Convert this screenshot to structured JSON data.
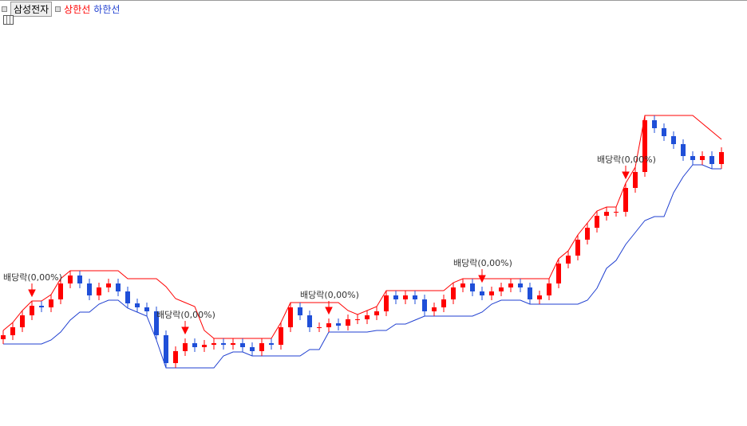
{
  "chart_data": {
    "type": "candlestick",
    "title": "삼성전자",
    "ylim": [
      0,
      495
    ],
    "up_color": "#ff0000",
    "down_color": "#1f4fd8",
    "open": [
      110,
      115,
      125,
      140,
      152,
      150,
      160,
      180,
      190,
      180,
      165,
      175,
      180,
      170,
      155,
      150,
      145,
      115,
      80,
      95,
      105,
      100,
      103,
      105,
      103,
      105,
      100,
      95,
      105,
      103,
      125,
      150,
      140,
      125,
      125,
      130,
      127,
      135,
      135,
      140,
      145,
      165,
      160,
      165,
      160,
      145,
      150,
      160,
      175,
      180,
      170,
      165,
      170,
      175,
      180,
      175,
      160,
      165,
      180,
      205,
      215,
      235,
      250,
      265,
      270,
      270,
      300,
      320,
      385,
      375,
      365,
      355,
      340,
      335,
      340,
      330
    ],
    "high": [
      121,
      131,
      146,
      158,
      158,
      166,
      186,
      196,
      196,
      186,
      181,
      186,
      186,
      176,
      161,
      156,
      151,
      121,
      101,
      111,
      111,
      109,
      111,
      111,
      111,
      111,
      106,
      111,
      111,
      131,
      156,
      156,
      146,
      131,
      136,
      136,
      141,
      141,
      146,
      151,
      171,
      171,
      171,
      171,
      166,
      156,
      166,
      181,
      186,
      186,
      176,
      176,
      181,
      186,
      186,
      181,
      171,
      186,
      211,
      221,
      241,
      256,
      271,
      276,
      276,
      306,
      326,
      391,
      391,
      381,
      371,
      361,
      346,
      346,
      346,
      351
    ],
    "low": [
      104,
      109,
      119,
      134,
      144,
      144,
      154,
      174,
      174,
      159,
      159,
      169,
      164,
      149,
      144,
      139,
      109,
      74,
      74,
      89,
      94,
      94,
      97,
      97,
      97,
      94,
      89,
      89,
      97,
      97,
      119,
      134,
      119,
      119,
      119,
      121,
      121,
      129,
      129,
      134,
      139,
      154,
      154,
      154,
      139,
      139,
      144,
      154,
      169,
      164,
      159,
      159,
      164,
      169,
      169,
      154,
      154,
      159,
      174,
      199,
      209,
      229,
      244,
      259,
      264,
      264,
      294,
      314,
      369,
      359,
      349,
      334,
      329,
      329,
      324,
      324
    ],
    "close": [
      115,
      125,
      140,
      152,
      150,
      160,
      180,
      190,
      180,
      165,
      175,
      180,
      170,
      155,
      150,
      145,
      115,
      80,
      95,
      105,
      100,
      103,
      105,
      103,
      105,
      100,
      95,
      105,
      103,
      125,
      150,
      140,
      125,
      125,
      130,
      127,
      135,
      135,
      140,
      145,
      165,
      160,
      165,
      160,
      145,
      150,
      160,
      175,
      180,
      170,
      165,
      170,
      175,
      180,
      175,
      160,
      165,
      180,
      205,
      215,
      235,
      250,
      265,
      270,
      270,
      300,
      320,
      385,
      375,
      365,
      355,
      340,
      335,
      340,
      330,
      345
    ],
    "series": [
      {
        "name": "상한선",
        "color": "#ff0000",
        "values": [
          121,
          131,
          146,
          158,
          158,
          166,
          186,
          196,
          196,
          196,
          196,
          196,
          196,
          186,
          186,
          186,
          186,
          176,
          161,
          156,
          151,
          121,
          111,
          111,
          111,
          111,
          111,
          111,
          111,
          131,
          156,
          156,
          156,
          156,
          156,
          156,
          146,
          141,
          146,
          151,
          171,
          171,
          171,
          171,
          171,
          171,
          171,
          181,
          186,
          186,
          186,
          186,
          186,
          186,
          186,
          186,
          186,
          186,
          211,
          221,
          241,
          256,
          271,
          276,
          276,
          306,
          326,
          391,
          391,
          391,
          391,
          391,
          391,
          381,
          371,
          361
        ]
      },
      {
        "name": "하한선",
        "color": "#1f3fd0",
        "values": [
          104,
          104,
          104,
          104,
          104,
          109,
          119,
          134,
          144,
          144,
          154,
          159,
          159,
          149,
          144,
          139,
          109,
          74,
          74,
          74,
          74,
          74,
          74,
          89,
          94,
          94,
          89,
          89,
          89,
          89,
          89,
          89,
          97,
          97,
          119,
          119,
          119,
          119,
          119,
          121,
          121,
          129,
          129,
          134,
          139,
          139,
          139,
          139,
          139,
          139,
          144,
          154,
          159,
          159,
          159,
          154,
          154,
          154,
          154,
          154,
          154,
          159,
          174,
          199,
          209,
          229,
          244,
          259,
          264,
          264,
          294,
          314,
          329,
          329,
          324,
          324
        ]
      }
    ],
    "annotations": [
      {
        "text": "배당락(0,00%)",
        "index": 3
      },
      {
        "text": "배당락(0,00%)",
        "index": 19
      },
      {
        "text": "배당락(0,00%)",
        "index": 34
      },
      {
        "text": "배당락(0,00%)",
        "index": 50
      },
      {
        "text": "배당락(0,00%)",
        "index": 65
      }
    ]
  }
}
